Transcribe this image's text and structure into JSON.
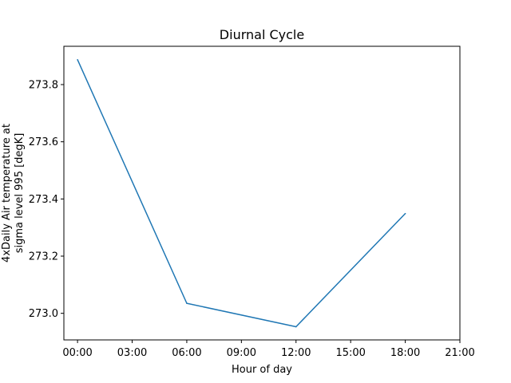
{
  "chart_data": {
    "type": "line",
    "title": "Diurnal Cycle",
    "xlabel": "Hour of day",
    "ylabel_lines": [
      "4xDaily Air temperature at",
      "sigma level 995 [degK]"
    ],
    "x_unit": "hour",
    "xlim": [
      -0.75,
      21.0
    ],
    "ylim": [
      272.907,
      273.934
    ],
    "x_ticks": [
      0,
      3,
      6,
      9,
      12,
      15,
      18,
      21
    ],
    "x_tick_labels": [
      "00:00",
      "03:00",
      "06:00",
      "09:00",
      "12:00",
      "15:00",
      "18:00",
      "21:00"
    ],
    "y_ticks": [
      273.0,
      273.2,
      273.4,
      273.6,
      273.8
    ],
    "y_tick_labels": [
      "273.0",
      "273.2",
      "273.4",
      "273.6",
      "273.8"
    ],
    "grid": false,
    "series": [
      {
        "x": [
          0,
          6,
          12,
          18
        ],
        "values": [
          273.887,
          273.035,
          272.953,
          273.349
        ]
      }
    ],
    "colors": {
      "line": "#1f77b4",
      "axes": "#000000",
      "background": "#ffffff"
    }
  }
}
